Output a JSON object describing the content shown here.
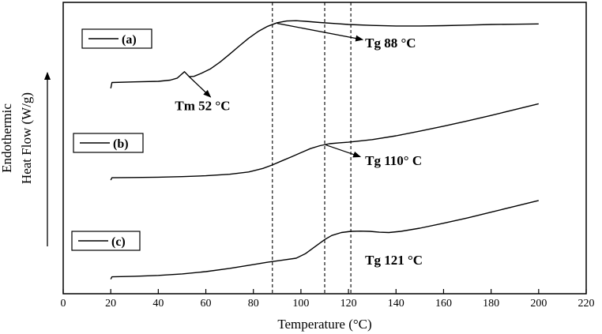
{
  "chart_data": {
    "type": "line",
    "xlabel": "Temperature (°C)",
    "ylabel_line1": "Endothermic",
    "ylabel_line2": "Heat Flow (W/g)",
    "xlim": [
      0,
      220
    ],
    "xticks": [
      0,
      20,
      40,
      60,
      80,
      100,
      120,
      140,
      160,
      180,
      200,
      220
    ],
    "y_tick_labels": false,
    "grid": false,
    "series": [
      {
        "name": "(a)",
        "x": [
          20,
          20.5,
          30,
          40,
          45,
          48,
          51,
          53,
          55,
          58,
          62,
          66,
          70,
          74,
          78,
          82,
          86,
          90,
          94,
          98,
          102,
          108,
          115,
          120,
          130,
          140,
          150,
          160,
          170,
          180,
          190,
          200
        ],
        "y": [
          7.05,
          7.25,
          7.27,
          7.29,
          7.33,
          7.4,
          7.62,
          7.45,
          7.46,
          7.56,
          7.72,
          7.95,
          8.22,
          8.5,
          8.77,
          9.0,
          9.18,
          9.3,
          9.36,
          9.37,
          9.35,
          9.31,
          9.27,
          9.24,
          9.21,
          9.19,
          9.19,
          9.2,
          9.22,
          9.24,
          9.25,
          9.26
        ]
      },
      {
        "name": "(b)",
        "x": [
          20,
          20.5,
          30,
          40,
          50,
          60,
          70,
          78,
          84,
          88,
          92,
          96,
          100,
          104,
          108,
          112,
          116,
          120,
          130,
          140,
          150,
          160,
          170,
          180,
          190,
          200
        ],
        "y": [
          3.9,
          3.98,
          3.99,
          4.0,
          4.02,
          4.05,
          4.1,
          4.18,
          4.3,
          4.42,
          4.56,
          4.7,
          4.84,
          4.98,
          5.08,
          5.15,
          5.18,
          5.2,
          5.29,
          5.42,
          5.58,
          5.75,
          5.93,
          6.12,
          6.32,
          6.52
        ]
      },
      {
        "name": "(c)",
        "x": [
          20,
          20.5,
          30,
          40,
          50,
          60,
          70,
          80,
          86,
          92,
          98,
          102,
          106,
          110,
          113,
          117,
          121,
          125,
          129,
          133,
          137,
          142,
          150,
          160,
          170,
          180,
          190,
          200
        ],
        "y": [
          0.5,
          0.58,
          0.6,
          0.63,
          0.68,
          0.76,
          0.87,
          1.0,
          1.08,
          1.15,
          1.22,
          1.38,
          1.62,
          1.86,
          2.0,
          2.1,
          2.14,
          2.15,
          2.14,
          2.11,
          2.1,
          2.14,
          2.25,
          2.42,
          2.6,
          2.8,
          3.0,
          3.2
        ]
      }
    ],
    "vlines": [
      88,
      110,
      121
    ],
    "legend": [
      {
        "label": "(a)"
      },
      {
        "label": "(b)"
      },
      {
        "label": "(c)"
      }
    ],
    "annotations": [
      {
        "text": "Tm 52 °C",
        "x": 47,
        "y": 6.3,
        "arrow_from": [
          53,
          7.45
        ],
        "arrow_to": [
          62,
          6.75
        ]
      },
      {
        "text": "Tg 88 °C",
        "x": 127,
        "y": 8.45,
        "arrow_from": [
          90,
          9.28
        ],
        "arrow_to": [
          126,
          8.72
        ]
      },
      {
        "text": "Tg 110° C",
        "x": 127,
        "y": 4.42,
        "arrow_from": [
          110,
          5.12
        ],
        "arrow_to": [
          125,
          4.7
        ]
      },
      {
        "text": "Tg 121 °C",
        "x": 127,
        "y": 1.0
      }
    ]
  }
}
